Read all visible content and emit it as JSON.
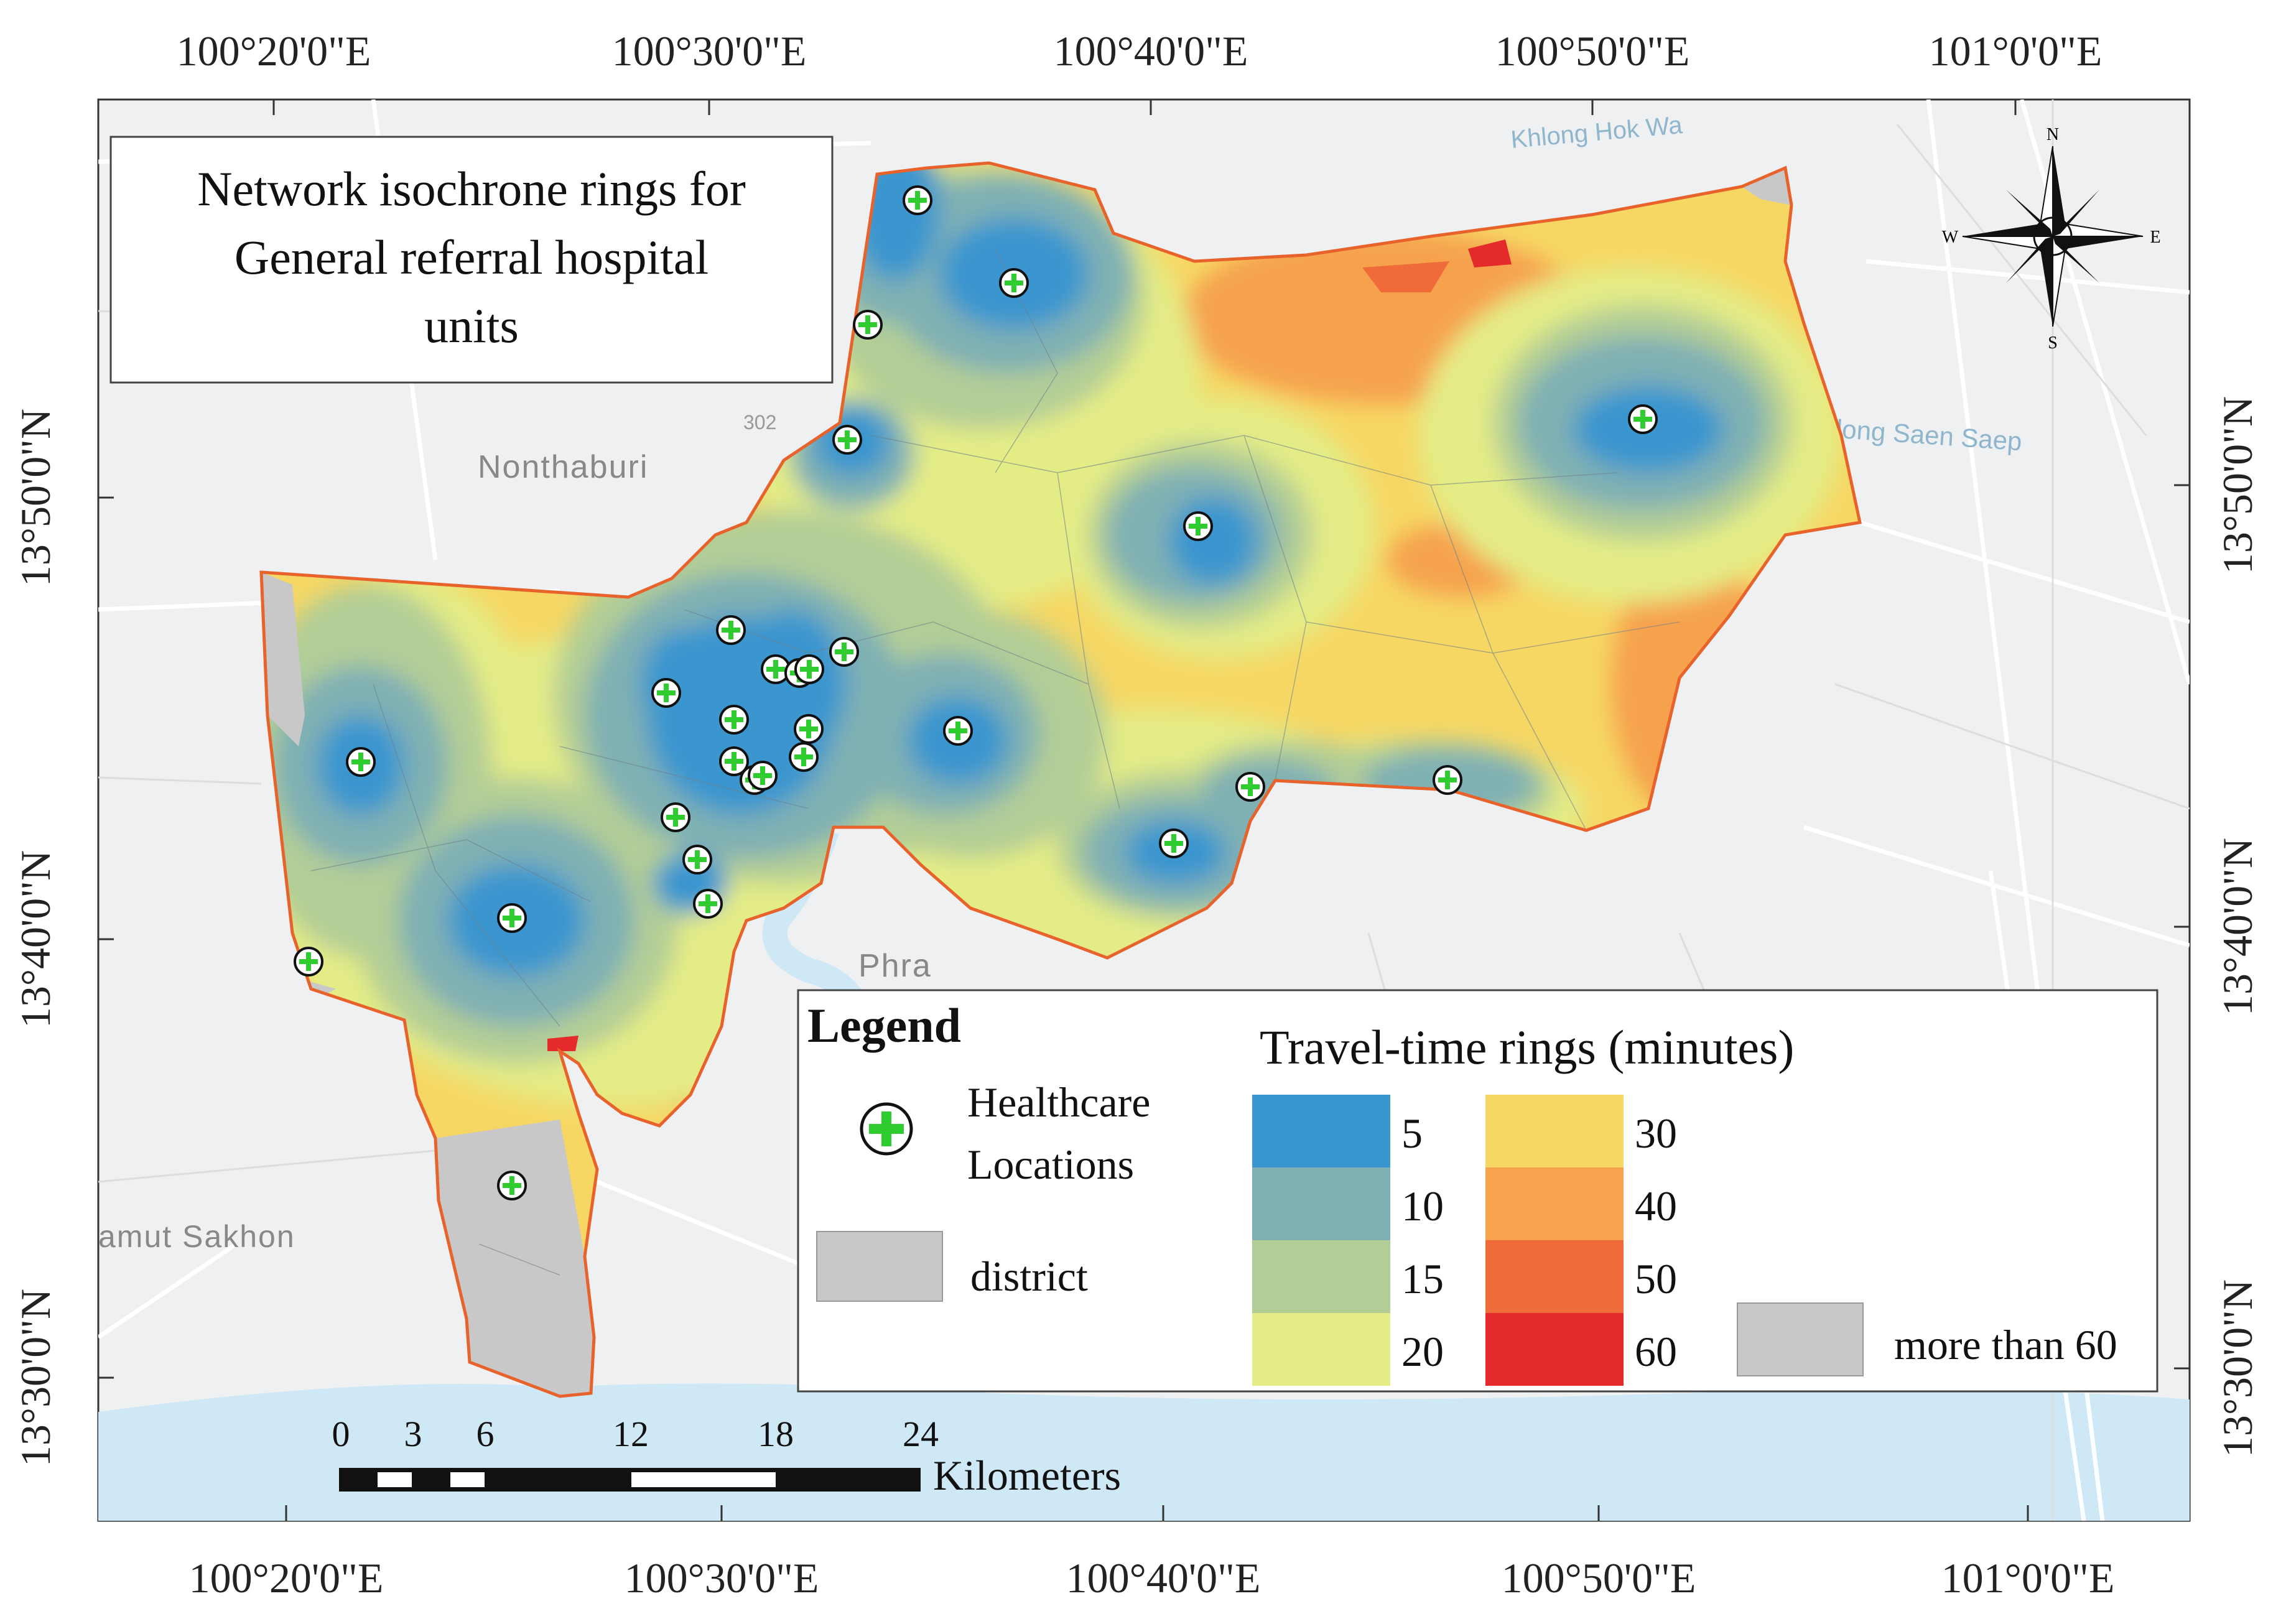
{
  "title": {
    "lines": [
      "Network isochrone rings for",
      "General referral hospital",
      "units"
    ]
  },
  "graticule": {
    "lon_labels": [
      "100°20'0\"E",
      "100°30'0\"E",
      "100°40'0\"E",
      "100°50'0\"E",
      "101°0'0\"E"
    ],
    "lat_labels": [
      "13°50'0\"N",
      "13°40'0\"N",
      "13°30'0\"N"
    ]
  },
  "basemap_labels": {
    "nonthaburi": "Nonthaburi",
    "phra": "Phra",
    "samut_sakhon": "amut Sakhon",
    "khlong_hok_wa": "Khlong Hok Wa",
    "khlong_saen_saep": "Khlong Saen Saep",
    "road_302": "302"
  },
  "compass": {
    "n": "N",
    "s": "S",
    "e": "E",
    "w": "W"
  },
  "legend": {
    "title": "Legend",
    "healthcare_line1": "Healthcare",
    "healthcare_line2": "Locations",
    "district": "district",
    "rings_title": "Travel-time rings (minutes)",
    "rings": [
      {
        "label": "5",
        "color": "#3a96cf"
      },
      {
        "label": "10",
        "color": "#7fb0b4"
      },
      {
        "label": "15",
        "color": "#b2cd96"
      },
      {
        "label": "20",
        "color": "#e4ec86"
      },
      {
        "label": "30",
        "color": "#f6d764"
      },
      {
        "label": "40",
        "color": "#f6a24e"
      },
      {
        "label": "50",
        "color": "#ef6b3a"
      },
      {
        "label": "60",
        "color": "#e42a2a"
      }
    ],
    "more_than_60": "more than 60",
    "more_than_60_color": "#c8c8c8"
  },
  "scalebar": {
    "ticks": [
      "0",
      "3",
      "6",
      "12",
      "18",
      "24"
    ],
    "unit": "Kilometers"
  },
  "colors": {
    "district_fill": "#c8c8c8",
    "boundary": "#e8622c",
    "marker_green": "#2fcc2f",
    "water": "#cfe8f6"
  }
}
